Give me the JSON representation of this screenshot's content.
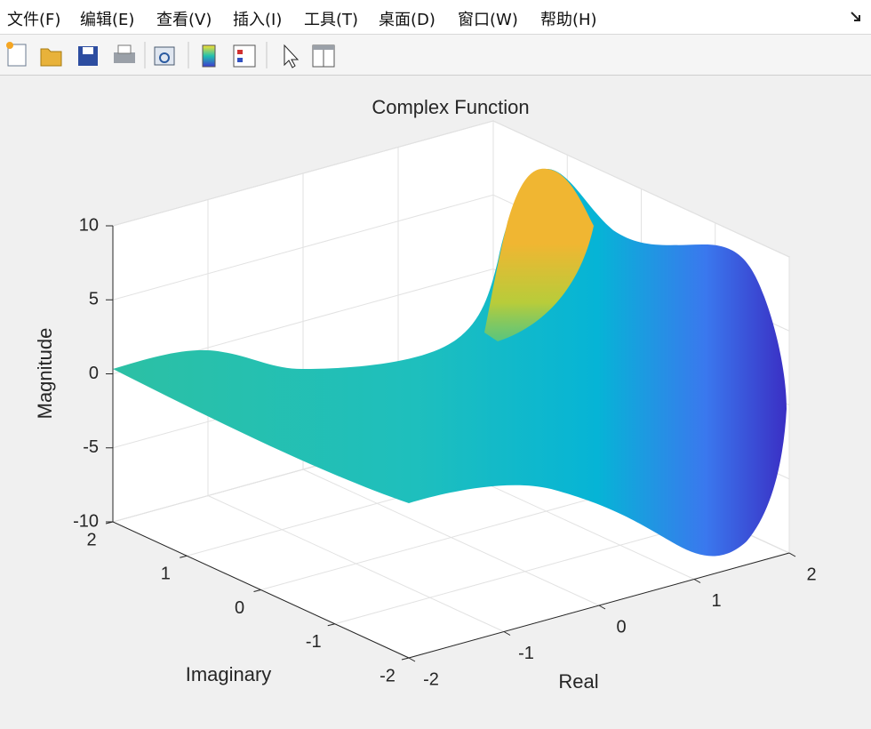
{
  "menu": [
    "文件(F)",
    "编辑(E)",
    "查看(V)",
    "插入(I)",
    "工具(T)",
    "桌面(D)",
    "窗口(W)",
    "帮助(H)"
  ],
  "chart_data": {
    "type": "surface3d",
    "title": "Complex Function",
    "xlabel": "Real",
    "ylabel": "Imaginary",
    "zlabel": "Magnitude",
    "xlim": [
      -2,
      2
    ],
    "xticks": [
      -2,
      -1,
      0,
      1,
      2
    ],
    "ylim": [
      -2,
      2
    ],
    "yticks": [
      -2,
      -1,
      0,
      1,
      2
    ],
    "zlim": [
      -10,
      10
    ],
    "zticks": [
      -10,
      -5,
      0,
      5,
      10
    ],
    "grid": true
  }
}
